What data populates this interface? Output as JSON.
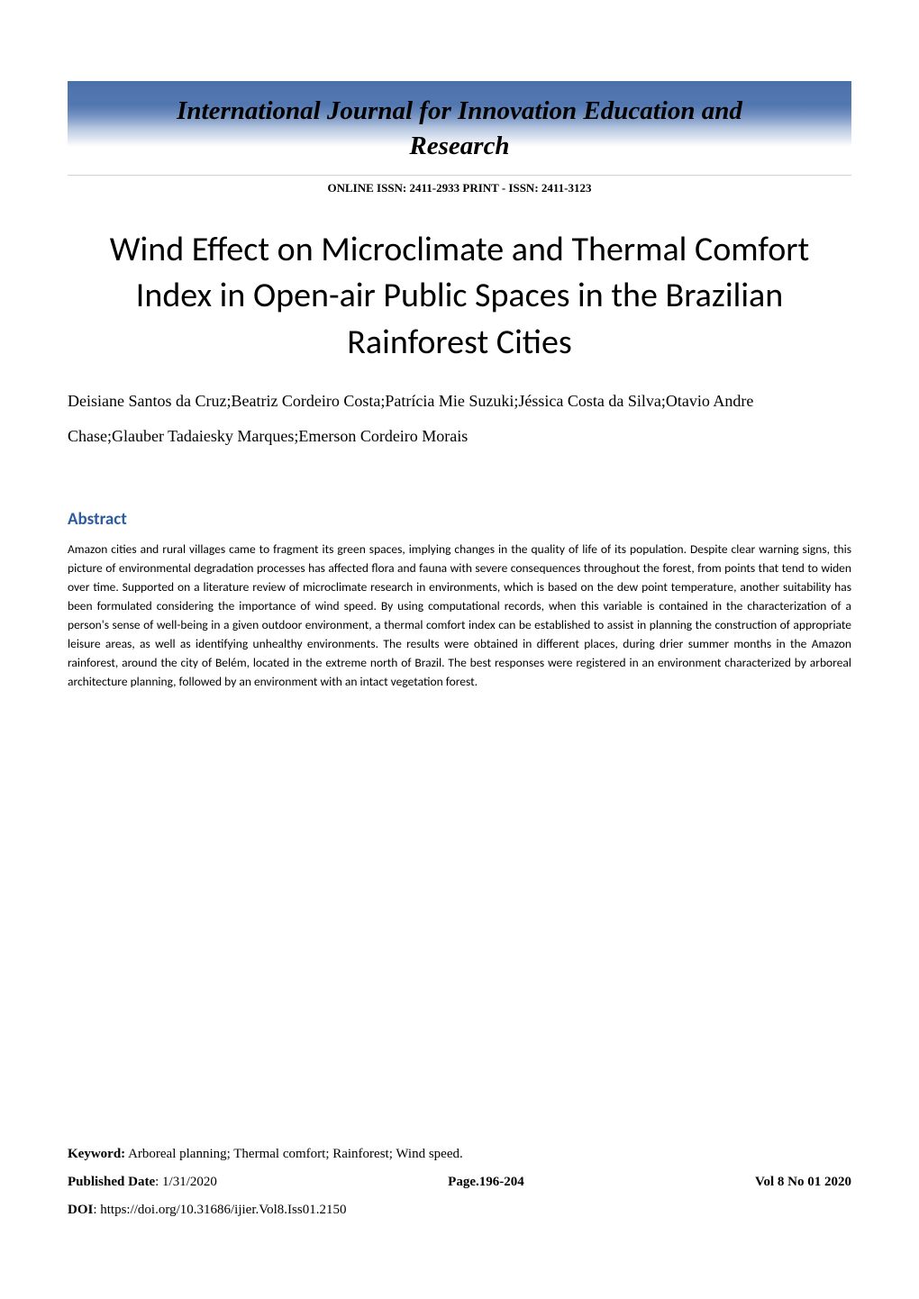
{
  "journal": {
    "name_line1": "International Journal for Innovation Education and",
    "name_line2": "Research",
    "issn": "ONLINE ISSN: 2411-2933 PRINT - ISSN: 2411-3123"
  },
  "article": {
    "title": "Wind Effect on Microclimate and Thermal Comfort Index in Open-air Public Spaces in the Brazilian Rainforest Cities",
    "authors": "Deisiane Santos da Cruz;Beatriz Cordeiro Costa;Patrícia Mie Suzuki;Jéssica Costa da Silva;Otavio Andre Chase;Glauber Tadaiesky Marques;Emerson Cordeiro Morais"
  },
  "abstract": {
    "heading": "Abstract",
    "text": "Amazon cities and rural villages came to fragment its green spaces, implying changes in the quality of life of its population. Despite clear warning signs, this picture of environmental degradation processes has affected flora and fauna with severe consequences throughout the forest, from points that tend to widen over time. Supported on a literature review of microclimate research in environments, which is based on the dew point temperature, another suitability has been formulated considering the importance of wind speed. By using computational records, when this variable is contained in the characterization of a person's sense of well-being in a given outdoor environment, a thermal comfort index can be established to assist in planning the construction of appropriate leisure areas, as well as identifying unhealthy environments. The results were obtained in different places, during drier summer months in the Amazon rainforest, around the city of Belém, located in the extreme north of Brazil. The best responses were registered in an environment characterized by arboreal architecture planning, followed by an environment with an intact vegetation forest."
  },
  "footer": {
    "keyword_label": "Keyword:",
    "keyword_value": " Arboreal planning; Thermal comfort; Rainforest; Wind speed.",
    "published_label": "Published Date",
    "published_value": ": 1/31/2020",
    "page_label": "Page.",
    "page_value": "196-204",
    "volume": "Vol 8 No 01 2020",
    "doi_label": "DOI",
    "doi_value": ": https://doi.org/10.31686/ijier.Vol8.Iss01.2150"
  },
  "styling": {
    "title_fontsize": 38,
    "authors_fontsize": 18,
    "abstract_heading_color": "#2e5c9e",
    "abstract_fontsize": 13.5,
    "footer_fontsize": 15,
    "banner_gradient_top": "#6b8fc4",
    "banner_gradient_mid": "#5a7fb8",
    "background_color": "#ffffff",
    "text_color": "#000000"
  }
}
